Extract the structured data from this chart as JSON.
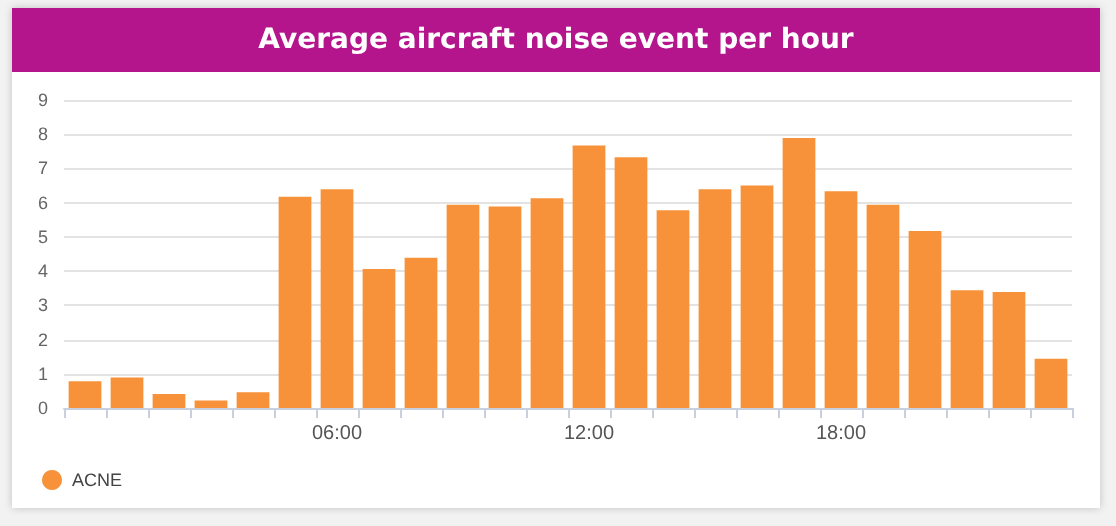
{
  "chart_data": {
    "type": "bar",
    "title": "Average aircraft noise event per hour",
    "categories": [
      null,
      null,
      null,
      null,
      null,
      null,
      "06:00",
      null,
      null,
      null,
      null,
      null,
      "12:00",
      null,
      null,
      null,
      null,
      null,
      "18:00",
      null,
      null,
      null,
      null,
      null
    ],
    "series": [
      {
        "name": "ACNE",
        "color": "#f7923a",
        "values": [
          0.78,
          0.89,
          0.41,
          0.22,
          0.46,
          6.17,
          6.39,
          4.06,
          4.39,
          5.94,
          5.89,
          6.13,
          7.67,
          7.33,
          5.78,
          6.39,
          6.5,
          7.89,
          6.33,
          5.94,
          5.17,
          3.44,
          3.39,
          1.44
        ]
      }
    ],
    "ylim": [
      0,
      9
    ],
    "yticks": [
      0,
      1,
      2,
      3,
      4,
      5,
      6,
      7,
      8,
      9
    ],
    "grid": "y",
    "legend": "bottom left"
  }
}
